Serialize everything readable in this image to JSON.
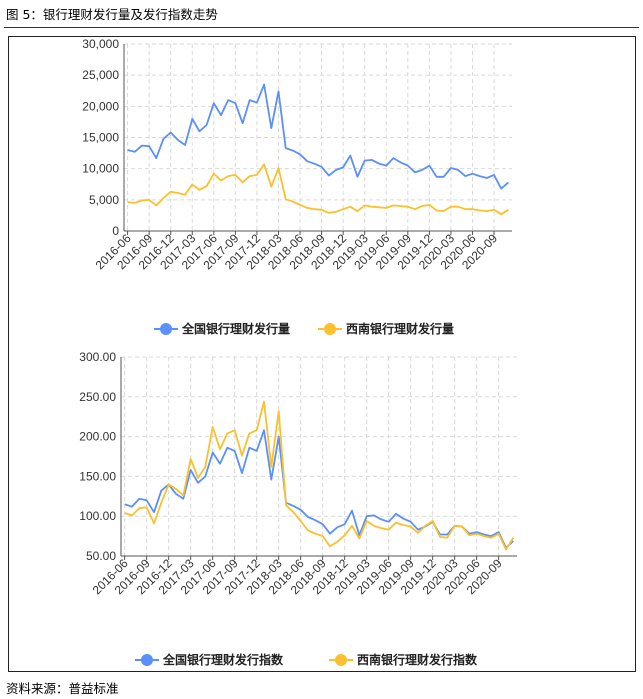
{
  "header": {
    "figure_title": "图 5：银行理财发行量及发行指数走势"
  },
  "footer": {
    "source": "资料来源：普益标准"
  },
  "colors": {
    "national": "#5B8FF9",
    "southwest": "#FBC02D",
    "grid": "#d9d9d9",
    "axis": "#555555"
  },
  "chart_data": [
    {
      "type": "line",
      "title": "",
      "xlabel": "",
      "ylabel": "",
      "ylim": [
        0,
        30000
      ],
      "yticks": [
        "0",
        "5,000",
        "10,000",
        "15,000",
        "20,000",
        "25,000",
        "30,000"
      ],
      "grid": true,
      "legend_position": "bottom",
      "x": [
        "2016-06",
        "2016-07",
        "2016-08",
        "2016-09",
        "2016-10",
        "2016-11",
        "2016-12",
        "2017-01",
        "2017-02",
        "2017-03",
        "2017-04",
        "2017-05",
        "2017-06",
        "2017-07",
        "2017-08",
        "2017-09",
        "2017-10",
        "2017-11",
        "2017-12",
        "2018-01",
        "2018-02",
        "2018-03",
        "2018-04",
        "2018-05",
        "2018-06",
        "2018-07",
        "2018-08",
        "2018-09",
        "2018-10",
        "2018-11",
        "2018-12",
        "2019-01",
        "2019-02",
        "2019-03",
        "2019-04",
        "2019-05",
        "2019-06",
        "2019-07",
        "2019-08",
        "2019-09",
        "2019-10",
        "2019-11",
        "2019-12",
        "2020-01",
        "2020-02",
        "2020-03",
        "2020-04",
        "2020-05",
        "2020-06",
        "2020-07",
        "2020-08",
        "2020-09",
        "2020-10",
        "2020-11"
      ],
      "xtick_labels": [
        "2016-06",
        "2016-09",
        "2016-12",
        "2017-03",
        "2017-06",
        "2017-09",
        "2017-12",
        "2018-03",
        "2018-06",
        "2018-09",
        "2018-12",
        "2019-03",
        "2019-06",
        "2019-09",
        "2019-12",
        "2020-03",
        "2020-06",
        "2020-09"
      ],
      "series": [
        {
          "name": "全国银行理财发行量",
          "values": [
            13000,
            12700,
            13700,
            13600,
            11700,
            14800,
            15800,
            14600,
            13800,
            18000,
            16000,
            17000,
            20500,
            18600,
            21000,
            20500,
            17300,
            21000,
            20600,
            23500,
            16500,
            22400,
            13300,
            12900,
            12300,
            11200,
            10800,
            10300,
            8900,
            9800,
            10200,
            12100,
            8700,
            11300,
            11400,
            10800,
            10500,
            11700,
            11000,
            10500,
            9400,
            9800,
            10500,
            8700,
            8700,
            10100,
            9800,
            8800,
            9200,
            8800,
            8500,
            9000,
            6800,
            7800
          ]
        },
        {
          "name": "西南银行理财发行量",
          "values": [
            4600,
            4500,
            4900,
            5000,
            4100,
            5300,
            6300,
            6100,
            5800,
            7500,
            6600,
            7200,
            9200,
            8100,
            8800,
            9000,
            7800,
            8800,
            9000,
            10700,
            7100,
            10100,
            5100,
            4700,
            4200,
            3700,
            3500,
            3400,
            2900,
            3100,
            3500,
            3900,
            3200,
            4100,
            3900,
            3800,
            3700,
            4100,
            4000,
            3900,
            3500,
            4000,
            4200,
            3300,
            3200,
            3900,
            3900,
            3500,
            3500,
            3300,
            3200,
            3400,
            2700,
            3400
          ]
        }
      ]
    },
    {
      "type": "line",
      "title": "",
      "xlabel": "",
      "ylabel": "",
      "ylim": [
        50,
        300
      ],
      "yticks": [
        "50.00",
        "100.00",
        "150.00",
        "200.00",
        "250.00",
        "300.00"
      ],
      "grid": true,
      "legend_position": "bottom",
      "x": [
        "2016-06",
        "2016-07",
        "2016-08",
        "2016-09",
        "2016-10",
        "2016-11",
        "2016-12",
        "2017-01",
        "2017-02",
        "2017-03",
        "2017-04",
        "2017-05",
        "2017-06",
        "2017-07",
        "2017-08",
        "2017-09",
        "2017-10",
        "2017-11",
        "2017-12",
        "2018-01",
        "2018-02",
        "2018-03",
        "2018-04",
        "2018-05",
        "2018-06",
        "2018-07",
        "2018-08",
        "2018-09",
        "2018-10",
        "2018-11",
        "2018-12",
        "2019-01",
        "2019-02",
        "2019-03",
        "2019-04",
        "2019-05",
        "2019-06",
        "2019-07",
        "2019-08",
        "2019-09",
        "2019-10",
        "2019-11",
        "2019-12",
        "2020-01",
        "2020-02",
        "2020-03",
        "2020-04",
        "2020-05",
        "2020-06",
        "2020-07",
        "2020-08",
        "2020-09",
        "2020-10",
        "2020-11"
      ],
      "xtick_labels": [
        "2016-06",
        "2016-09",
        "2016-12",
        "2017-03",
        "2017-06",
        "2017-09",
        "2017-12",
        "2018-03",
        "2018-06",
        "2018-09",
        "2018-12",
        "2019-03",
        "2019-06",
        "2019-09",
        "2019-12",
        "2020-03",
        "2020-06",
        "2020-09"
      ],
      "series": [
        {
          "name": "全国银行理财发行指数",
          "values": [
            115,
            112,
            122,
            120,
            105,
            132,
            140,
            128,
            122,
            158,
            142,
            150,
            180,
            166,
            186,
            182,
            154,
            186,
            182,
            208,
            146,
            200,
            117,
            113,
            108,
            99,
            95,
            90,
            78,
            86,
            90,
            107,
            76,
            100,
            101,
            96,
            93,
            103,
            97,
            93,
            83,
            87,
            93,
            77,
            77,
            88,
            87,
            78,
            80,
            77,
            75,
            80,
            60,
            69
          ]
        },
        {
          "name": "西南银行理财发行指数",
          "values": [
            104,
            101,
            110,
            111,
            91,
            117,
            140,
            134,
            126,
            172,
            148,
            162,
            212,
            184,
            204,
            208,
            176,
            204,
            208,
            244,
            162,
            232,
            114,
            105,
            94,
            82,
            78,
            75,
            62,
            68,
            76,
            88,
            72,
            94,
            88,
            85,
            83,
            92,
            89,
            87,
            79,
            88,
            94,
            74,
            73,
            88,
            87,
            76,
            78,
            75,
            73,
            78,
            58,
            73
          ]
        }
      ]
    }
  ]
}
